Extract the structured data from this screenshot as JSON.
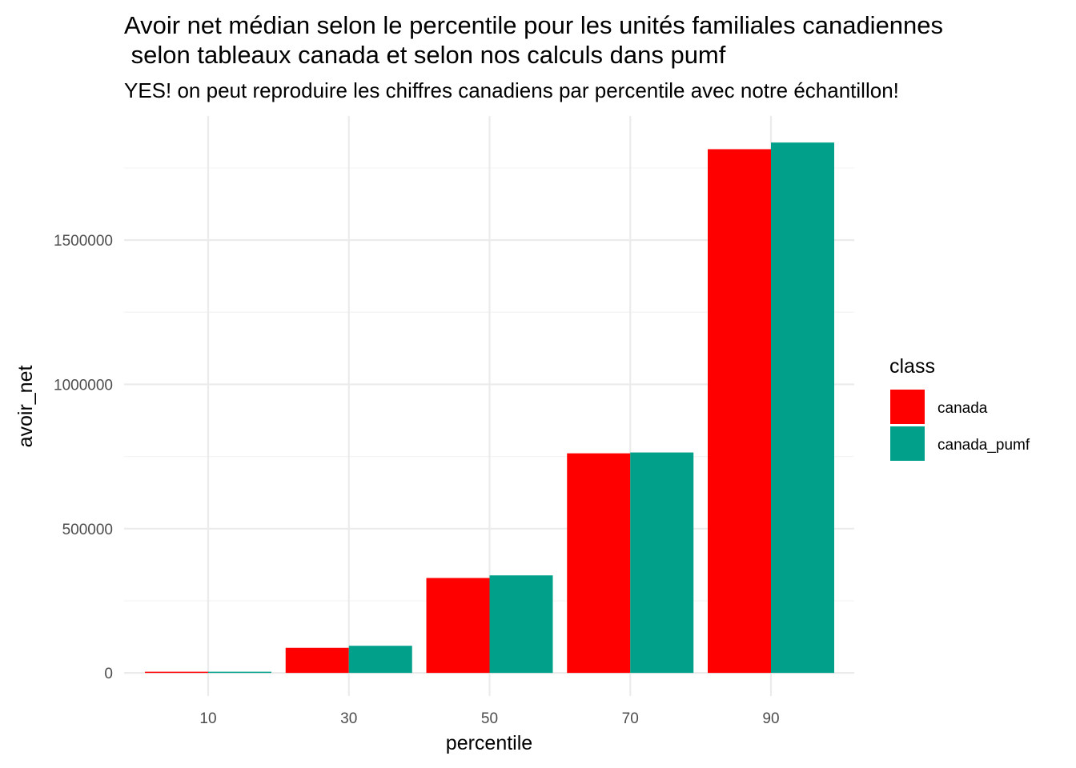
{
  "chart_data": {
    "type": "bar",
    "title_line1": "Avoir net médian selon le percentile pour les unités familiales canadiennes",
    "title_line2": " selon tableaux canada et selon nos calculs dans pumf",
    "subtitle": "YES! on peut reproduire les chiffres canadiens par percentile avec notre échantillon!",
    "xlabel": "percentile",
    "ylabel": "avoir_net",
    "categories": [
      "10",
      "30",
      "50",
      "70",
      "90"
    ],
    "yticks": [
      0,
      500000,
      1000000,
      1500000
    ],
    "ytick_labels": [
      "0",
      "500000",
      "1000000",
      "1500000"
    ],
    "ylim": [
      -80000,
      1930000
    ],
    "legend_title": "class",
    "legend_position": "right",
    "grid": true,
    "series": [
      {
        "name": "canada",
        "color": "#ff0000",
        "values": [
          2000,
          87000,
          329000,
          761000,
          1815000
        ]
      },
      {
        "name": "canada_pumf",
        "color": "#00a08a",
        "values": [
          3000,
          94000,
          338000,
          764000,
          1838000
        ]
      }
    ]
  }
}
